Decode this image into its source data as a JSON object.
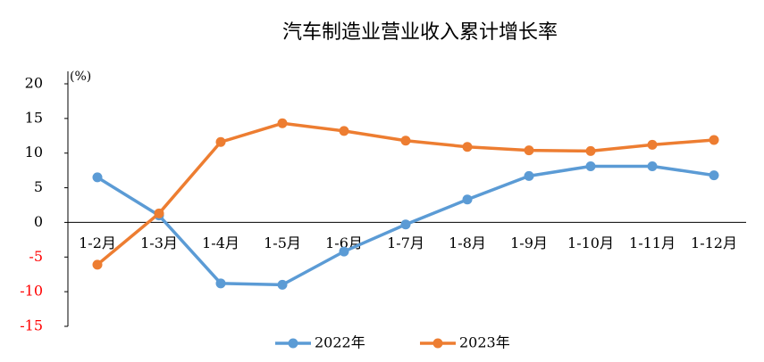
{
  "chart_data": {
    "type": "line",
    "title": "汽车制造业营业收入累计增长率",
    "y_unit": "(%)",
    "categories": [
      "1-2月",
      "1-3月",
      "1-4月",
      "1-5月",
      "1-6月",
      "1-7月",
      "1-8月",
      "1-9月",
      "1-10月",
      "1-11月",
      "1-12月"
    ],
    "series": [
      {
        "name": "2022年",
        "color": "#5b9bd5",
        "values": [
          6.5,
          1.0,
          -8.8,
          -9.0,
          -4.2,
          -0.3,
          3.3,
          6.7,
          8.1,
          8.1,
          6.8
        ]
      },
      {
        "name": "2023年",
        "color": "#ed7d31",
        "values": [
          -6.1,
          1.3,
          11.6,
          14.3,
          13.2,
          11.8,
          10.9,
          10.4,
          10.3,
          11.2,
          11.9
        ]
      }
    ],
    "ylim": [
      -15,
      20
    ],
    "yticks": [
      -15,
      -10,
      -5,
      0,
      5,
      10,
      15,
      20
    ],
    "negative_tick_color": "#ff0000",
    "legend": "bottom"
  }
}
